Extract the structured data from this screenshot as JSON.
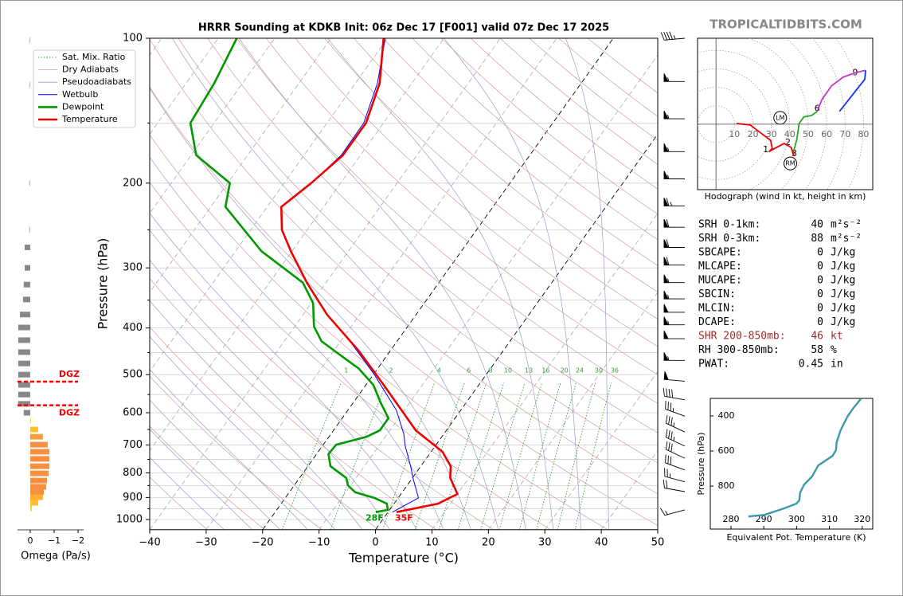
{
  "chart_data": {
    "type": "skewt",
    "title": "HRRR Sounding at KDKB Init: 06z Dec 17 [F001] valid 07z Dec 17 2025",
    "watermark": "TROPICALTIDBITS.COM",
    "xlabel": "Temperature (°C)",
    "ylabel": "Pressure (hPa)",
    "xlim": [
      -40,
      50
    ],
    "ylim": [
      1050,
      100
    ],
    "log_y": true,
    "grid": true,
    "xticks": [
      {
        "value": -40,
        "label": "−40"
      },
      {
        "value": -30,
        "label": "−30"
      },
      {
        "value": -20,
        "label": "−20"
      },
      {
        "value": -10,
        "label": "−10"
      },
      0,
      10,
      20,
      30,
      40,
      50
    ],
    "yticks": [
      100,
      200,
      300,
      400,
      500,
      600,
      700,
      800,
      900,
      1000
    ],
    "yminorticks": [
      150,
      250,
      350,
      450,
      550,
      650,
      750,
      850,
      950
    ],
    "legend": "upper left",
    "reference_lines": [
      {
        "name": "Sat. Mix. Ratio",
        "color": "#3a9a3a",
        "values": [
          1,
          2,
          4,
          6,
          8,
          10,
          13,
          16,
          20,
          24,
          30,
          36
        ]
      },
      {
        "name": "Dry Adiabats",
        "color": "#d99a9a"
      },
      {
        "name": "Pseudoadiabats",
        "color": "#9a9ad0"
      }
    ],
    "series": [
      {
        "name": "Wetbulb",
        "color": "#0000ee",
        "pressure": [
          100,
          124,
          150,
          175,
          200,
          224,
          250,
          277,
          322,
          375,
          429,
          500,
          593,
          664,
          704,
          775,
          820,
          902,
          965
        ],
        "values": [
          -60.4,
          -56.1,
          -53.5,
          -53.4,
          -55.2,
          -57.5,
          -54.5,
          -50.2,
          -43.4,
          -35.8,
          -28.0,
          -19.8,
          -11.4,
          -7.1,
          -5.3,
          -1.8,
          0.1,
          3.6,
          0.8
        ]
      },
      {
        "name": "Dewpoint",
        "color": "#009900",
        "pressure": [
          100,
          124,
          150,
          175,
          200,
          224,
          277,
          322,
          355,
          397,
          426,
          449,
          486,
          525,
          571,
          616,
          653,
          673,
          699,
          731,
          775,
          820,
          849,
          878,
          902,
          927,
          955,
          965
        ],
        "values": [
          -86.7,
          -85.0,
          -84.2,
          -79.1,
          -69.6,
          -67.4,
          -55.4,
          -44.1,
          -39.7,
          -36.6,
          -33.4,
          -29.4,
          -23.3,
          -18.7,
          -15.2,
          -11.8,
          -11.8,
          -13.3,
          -17.7,
          -17.9,
          -16.0,
          -11.7,
          -10.5,
          -8.3,
          -4.2,
          -1.3,
          -0.3,
          -2.2
        ]
      },
      {
        "name": "Temperature",
        "color": "#ee0000",
        "pressure": [
          100,
          124,
          150,
          175,
          200,
          224,
          250,
          277,
          322,
          375,
          446,
          515,
          587,
          653,
          723,
          775,
          820,
          885,
          927,
          965
        ],
        "values": [
          -60.7,
          -55.7,
          -53.1,
          -53.1,
          -55.2,
          -57.5,
          -54.5,
          -50.2,
          -43.4,
          -35.8,
          -25.6,
          -17.9,
          -11.0,
          -5.4,
          2.0,
          5.3,
          6.7,
          10.0,
          7.8,
          1.5
        ]
      }
    ],
    "surface_labels": [
      {
        "label": "28F",
        "color": "#009900"
      },
      {
        "label": "35F",
        "color": "#ee0000"
      }
    ],
    "winds": {
      "pressure": [
        100,
        123,
        147,
        172,
        196,
        223,
        247,
        272,
        296,
        322,
        348,
        371,
        394,
        421,
        467,
        516,
        564,
        610,
        658,
        704,
        746,
        789,
        835,
        875,
        955
      ],
      "speed": [
        45,
        55,
        55,
        55,
        55,
        65,
        60,
        60,
        60,
        55,
        55,
        50,
        55,
        50,
        55,
        50,
        40,
        35,
        35,
        35,
        30,
        30,
        25,
        20,
        15
      ],
      "direction": [
        265,
        270,
        270,
        270,
        270,
        270,
        270,
        270,
        270,
        270,
        270,
        270,
        270,
        270,
        270,
        275,
        280,
        290,
        295,
        295,
        295,
        290,
        285,
        280,
        255
      ]
    },
    "omega": {
      "xlabel": "Omega (Pa/s)",
      "xlim": [
        0.53,
        -2.23
      ],
      "xticks": [
        0,
        {
          "value": -1,
          "label": "−1"
        },
        {
          "value": -2,
          "label": "−2"
        }
      ],
      "pressure": [
        101,
        125,
        200,
        250,
        272,
        300,
        325,
        349,
        375,
        399,
        424,
        449,
        474,
        500,
        525,
        550,
        575,
        600,
        623,
        650,
        673,
        699,
        723,
        748,
        775,
        802,
        830,
        855,
        878,
        899,
        923,
        948
      ],
      "values": [
        0.02,
        0.02,
        0.02,
        0.02,
        0.23,
        0.23,
        0.27,
        0.3,
        0.43,
        0.5,
        0.5,
        0.5,
        0.5,
        0.5,
        0.5,
        0.5,
        0.5,
        0.27,
        -0.03,
        -0.33,
        -0.53,
        -0.73,
        -0.8,
        -0.8,
        -0.8,
        -0.77,
        -0.7,
        -0.67,
        -0.57,
        -0.53,
        -0.33,
        -0.07
      ],
      "colors": [
        "#888888",
        "#888888",
        "#888888",
        "#888888",
        "#888888",
        "#888888",
        "#888888",
        "#888888",
        "#888888",
        "#888888",
        "#888888",
        "#888888",
        "#888888",
        "#888888",
        "#888888",
        "#888888",
        "#888888",
        "#888888",
        "#ffd040",
        "#ffc030",
        "#f5a040",
        "#f59040",
        "#f59040",
        "#f59040",
        "#f59040",
        "#f59040",
        "#f59040",
        "#f59040",
        "#f59040",
        "#ffb030",
        "#ffc030",
        "#ffd040"
      ],
      "dgz": {
        "label": "DGZ",
        "color": "#ee0000",
        "pressure": [
          517,
          579
        ]
      }
    },
    "hodograph": {
      "caption": "Hodograph (wind in kt, height in km)",
      "ulim": [
        -10,
        85
      ],
      "vlim": [
        -35,
        46
      ],
      "rings": [
        10,
        20,
        30,
        40,
        50,
        60,
        70,
        80
      ],
      "segments": [
        {
          "color": "#ee0000",
          "u": [
            11.2,
            18.5,
            29.6,
            30.5,
            28.8,
            36.9,
            40.8,
            42.1,
            42.1
          ],
          "v": [
            0.4,
            -0.4,
            -8.6,
            -12.9,
            -14.6,
            -10.3,
            -12.4,
            -16.7,
            -14.6
          ]
        },
        {
          "color": "#22aa22",
          "u": [
            42.1,
            43.8,
            45.1,
            47.6,
            51.9,
            54.9
          ],
          "v": [
            -14.6,
            -8.2,
            0.4,
            3.9,
            4.7,
            6.9
          ]
        },
        {
          "color": "#cc33cc",
          "u": [
            54.9,
            57.5,
            62.7,
            69.1,
            75.5,
            81.1
          ],
          "v": [
            6.9,
            13.3,
            20.6,
            25.3,
            27.5,
            28.8
          ]
        },
        {
          "color": "#1133ee",
          "u": [
            81.1,
            80.7,
            67.0
          ],
          "v": [
            28.8,
            24.0,
            6.9
          ]
        }
      ],
      "heights": [
        {
          "label": "1",
          "u": 27.0,
          "v": -13.7
        },
        {
          "label": "2",
          "u": 39.0,
          "v": -9.9
        },
        {
          "label": "3",
          "u": 42.5,
          "v": -15.9
        },
        {
          "label": "6",
          "u": 54.9,
          "v": 8.2
        },
        {
          "label": "9",
          "u": 75.5,
          "v": 27.5
        }
      ],
      "storm_motion": [
        {
          "label": "LM",
          "u": 34.8,
          "v": 3.4
        },
        {
          "label": "RM",
          "u": 40.3,
          "v": -21.0
        }
      ]
    },
    "parameters": [
      {
        "label": "SRH 0-1km:",
        "value": 40,
        "unit": "m²s⁻²"
      },
      {
        "label": "SRH 0-3km:",
        "value": 88,
        "unit": "m²s⁻²"
      },
      {
        "label": "SBCAPE:",
        "value": 0,
        "unit": "J/kg"
      },
      {
        "label": "MLCAPE:",
        "value": 0,
        "unit": "J/kg"
      },
      {
        "label": "MUCAPE:",
        "value": 0,
        "unit": "J/kg"
      },
      {
        "label": "SBCIN:",
        "value": 0,
        "unit": "J/kg"
      },
      {
        "label": "MLCIN:",
        "value": 0,
        "unit": "J/kg"
      },
      {
        "label": "DCAPE:",
        "value": 0,
        "unit": "J/kg"
      },
      {
        "label": "SHR 200-850mb:",
        "value": 46,
        "unit": "kt",
        "color": "#a52a2a"
      },
      {
        "label": "RH 300-850mb:",
        "value": 58,
        "unit": "%"
      },
      {
        "label": "PWAT:",
        "value": 0.45,
        "unit": "in"
      }
    ],
    "theta_e": {
      "xlabel": "Equivalent Pot. Temperature (K)",
      "ylabel": "Pressure (hPa)",
      "color": "#3a9ab0",
      "xlim": [
        273.7,
        323.2
      ],
      "ylim": [
        1045,
        300
      ],
      "xticks": [
        280,
        290,
        300,
        310,
        320
      ],
      "yticks": [
        400,
        600,
        800
      ],
      "pressure": [
        973,
        964,
        927,
        900,
        882,
        836,
        791,
        745,
        682,
        627,
        595,
        550,
        482,
        400,
        355,
        300
      ],
      "values": [
        285.3,
        290.2,
        296.2,
        299.9,
        300.8,
        301.1,
        302.3,
        304.7,
        306.6,
        311.0,
        312.0,
        312.2,
        313.4,
        315.6,
        317.3,
        319.7
      ]
    }
  }
}
